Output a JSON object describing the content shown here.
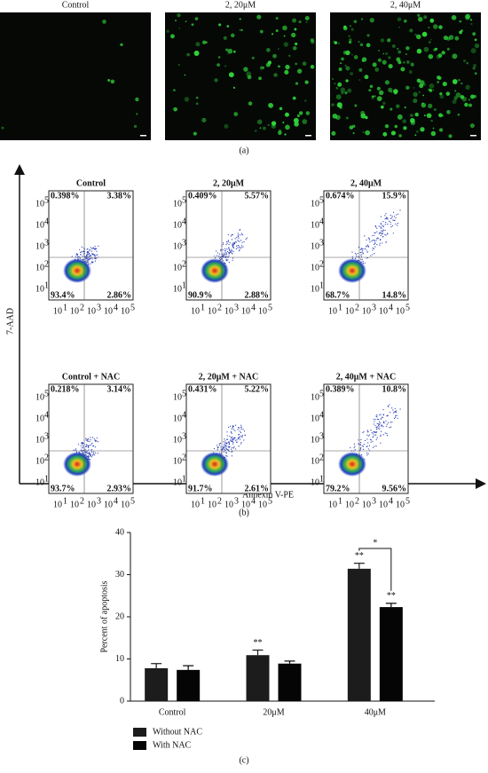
{
  "panel_a": {
    "image_titles": [
      "Control",
      "2, 20μM",
      "2, 40μM"
    ],
    "caption": "(a)"
  },
  "panel_b": {
    "y_label": "7-AAD",
    "x_label": "Annexin V-PE",
    "caption": "(b)",
    "tick_base": "10",
    "tick_exponents": [
      "1",
      "2",
      "3",
      "4",
      "5"
    ],
    "plots": [
      {
        "title": "Control",
        "upper_left": "0.398%",
        "upper_right": "3.38%",
        "lower_left": "93.4%",
        "lower_right": "2.86%"
      },
      {
        "title": "2, 20μM",
        "upper_left": "0.409%",
        "upper_right": "5.57%",
        "lower_left": "90.9%",
        "lower_right": "2.88%"
      },
      {
        "title": "2, 40μM",
        "upper_left": "0.674%",
        "upper_right": "15.9%",
        "lower_left": "68.7%",
        "lower_right": "14.8%"
      },
      {
        "title": "Control + NAC",
        "upper_left": "0.218%",
        "upper_right": "3.14%",
        "lower_left": "93.7%",
        "lower_right": "2.93%"
      },
      {
        "title": "2, 20μM + NAC",
        "upper_left": "0.431%",
        "upper_right": "5.22%",
        "lower_left": "91.7%",
        "lower_right": "2.61%"
      },
      {
        "title": "2, 40μM + NAC",
        "upper_left": "0.389%",
        "upper_right": "10.8%",
        "lower_left": "79.2%",
        "lower_right": "9.56%"
      }
    ]
  },
  "panel_c": {
    "caption": "(c)",
    "chart_data": {
      "type": "bar",
      "y_label": "Percent of apoptosis",
      "categories": [
        "Control",
        "20μM",
        "40μM"
      ],
      "series": [
        {
          "name": "Without NAC",
          "color": "#1c1c1c",
          "values": [
            7.8,
            10.9,
            31.4
          ],
          "errors": [
            1.1,
            1.2,
            1.3
          ],
          "annotations": [
            null,
            "**",
            "**"
          ]
        },
        {
          "name": "With NAC",
          "color": "#050505",
          "values": [
            7.4,
            8.9,
            22.3
          ],
          "errors": [
            1.0,
            0.6,
            0.9
          ],
          "annotations": [
            null,
            null,
            "**"
          ]
        }
      ],
      "significance": "*",
      "ylim": [
        0,
        40
      ],
      "yticks": [
        0,
        10,
        20,
        30,
        40
      ]
    }
  }
}
